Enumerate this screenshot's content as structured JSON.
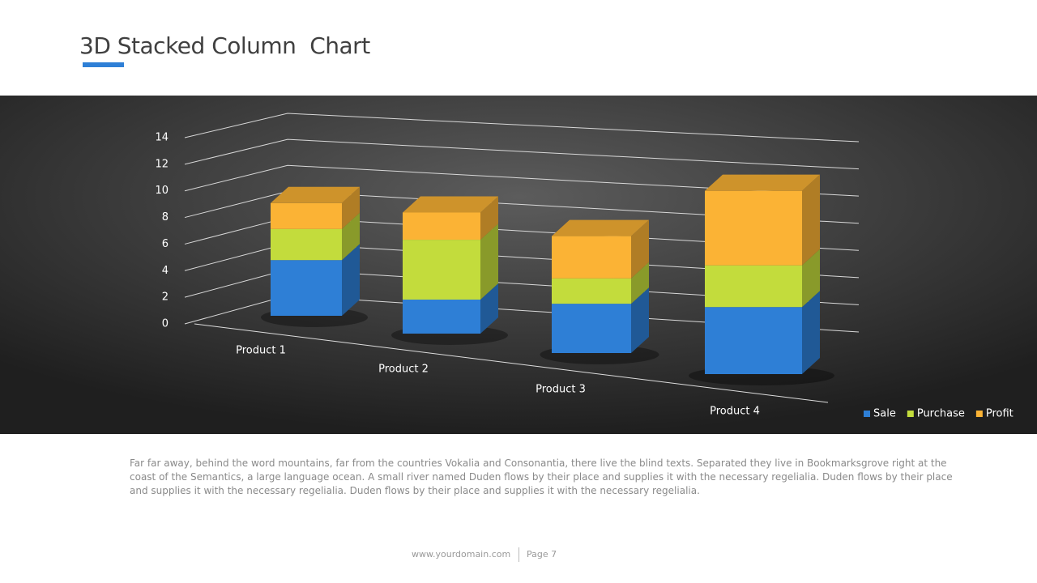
{
  "header": {
    "title": "3D Stacked Column  Chart"
  },
  "chart_data": {
    "type": "bar",
    "stacked": true,
    "categories": [
      "Product 1",
      "Product 2",
      "Product 3",
      "Product 4"
    ],
    "series": [
      {
        "name": "Sale",
        "color": "#2e7fd6",
        "values": [
          4.3,
          2.5,
          3.5,
          4.5
        ]
      },
      {
        "name": "Purchase",
        "color": "#c3dc3c",
        "values": [
          2.4,
          4.4,
          1.8,
          2.8
        ]
      },
      {
        "name": "Profit",
        "color": "#fbb335",
        "values": [
          2,
          2,
          3,
          5
        ]
      }
    ],
    "ylim": [
      0,
      14
    ],
    "yticks": [
      0,
      2,
      4,
      6,
      8,
      10,
      12,
      14
    ],
    "grid": true,
    "legend": "bottom-right"
  },
  "body": {
    "text": "Far far away, behind the word mountains, far from the countries Vokalia and Consonantia, there live the blind texts. Separated they live in Bookmarksgrove right at the coast of the Semantics, a large language ocean. A small river named Duden flows by their place and supplies it with the necessary regelialia. Duden flows by their place and supplies it with the necessary regelialia. Duden flows by their place and supplies it with the necessary regelialia."
  },
  "footer": {
    "domain": "www.yourdomain.com",
    "page": "Page 7"
  }
}
